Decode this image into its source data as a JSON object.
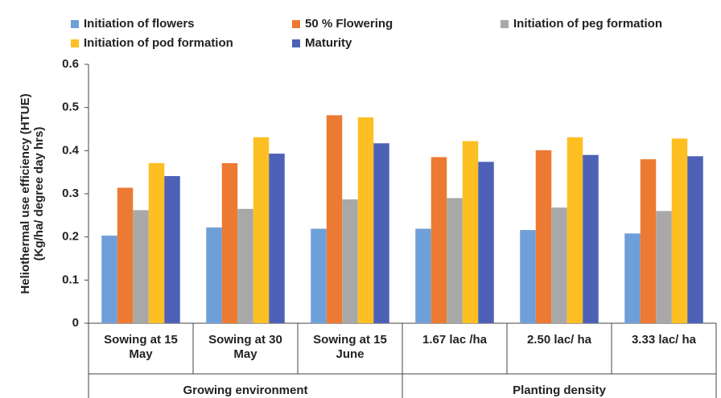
{
  "chart_data": {
    "type": "bar",
    "ylabel": [
      "Heliothermal use efficiency (HTUE)",
      "(Kg/ha/ degree day hrs)"
    ],
    "groups": [
      {
        "label": "Growing environment",
        "categories": [
          "Sowing at 15 May",
          "Sowing at 30 May",
          "Sowing at 15 June"
        ]
      },
      {
        "label": "Planting density",
        "categories": [
          "1.67 lac /ha",
          "2.50 lac/ ha",
          "3.33 lac/ ha"
        ]
      }
    ],
    "series": [
      {
        "name": "Initiation of flowers",
        "color": "#6e9fd8",
        "values": [
          0.203,
          0.222,
          0.219,
          0.219,
          0.216,
          0.208
        ]
      },
      {
        "name": "50 % Flowering",
        "color": "#ec7a33",
        "values": [
          0.314,
          0.371,
          0.482,
          0.385,
          0.401,
          0.38
        ]
      },
      {
        "name": "Initiation of peg formation",
        "color": "#a8a8a8",
        "values": [
          0.262,
          0.265,
          0.287,
          0.29,
          0.268,
          0.26
        ]
      },
      {
        "name": "Initiation of pod formation",
        "color": "#fdbf22",
        "values": [
          0.371,
          0.431,
          0.477,
          0.422,
          0.431,
          0.428
        ]
      },
      {
        "name": "Maturity",
        "color": "#4d62b6",
        "values": [
          0.341,
          0.393,
          0.417,
          0.374,
          0.39,
          0.387
        ]
      }
    ],
    "ylim": [
      0,
      0.6
    ],
    "yticks": [
      0,
      0.1,
      0.2,
      0.3,
      0.4,
      0.5,
      0.6
    ],
    "grid": false,
    "legend": "top"
  }
}
